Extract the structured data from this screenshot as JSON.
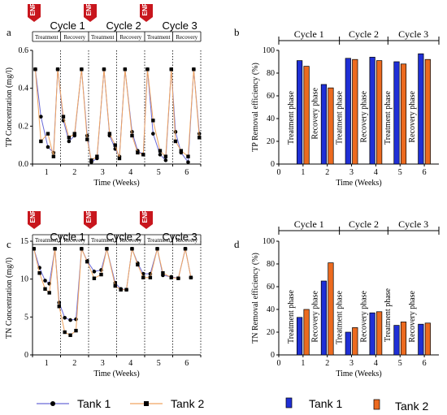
{
  "labels": {
    "panel_a": "a",
    "panel_b": "b",
    "panel_c": "c",
    "panel_d": "d",
    "enr": "ENR",
    "cycles": [
      "Cycle 1",
      "Cycle 2",
      "Cycle 3"
    ],
    "treatment": "Treatment",
    "recovery": "Recovery",
    "treatment_phase": "Treatment phase",
    "recovery_phase": "Recovery phase"
  },
  "legend": {
    "line": [
      {
        "name": "Tank 1",
        "marker": "circle"
      },
      {
        "name": "Tank 2",
        "marker": "square"
      }
    ],
    "bar": [
      {
        "name": "Tank 1",
        "color": "#1f2fd6"
      },
      {
        "name": "Tank 2",
        "color": "#ec6a1f"
      }
    ]
  },
  "colors": {
    "tank1_line": "#6a6ad8",
    "tank2_line": "#f0a560",
    "tank1_bar": "#1f2fd6",
    "tank2_bar": "#ec6a1f",
    "enr": "#c8161d"
  },
  "chart_data": [
    {
      "type": "line",
      "panel": "a",
      "xlabel": "Time (Weeks)",
      "ylabel": "TP Concentration (mg/l)",
      "ylim": [
        0,
        0.6
      ],
      "yticks": [
        "0.0",
        "0.2",
        "0.4",
        "0.6"
      ],
      "xticks": [
        "1",
        "2",
        "3",
        "4",
        "5",
        "6"
      ],
      "series": [
        {
          "name": "Tank 1",
          "x": [
            0.1,
            0.3,
            0.55,
            0.75,
            0.9,
            1.1,
            1.3,
            1.5,
            1.75,
            1.95,
            2.1,
            2.3,
            2.55,
            2.75,
            2.95,
            3.1,
            3.3,
            3.55,
            3.75,
            3.95,
            4.1,
            4.3,
            4.55,
            4.75,
            4.95,
            5.1,
            5.3,
            5.55,
            5.75,
            5.95
          ],
          "values": [
            0.5,
            0.25,
            0.09,
            0.06,
            0.5,
            0.23,
            0.12,
            0.15,
            0.5,
            0.15,
            0.01,
            0.03,
            0.5,
            0.15,
            0.08,
            0.04,
            0.5,
            0.17,
            0.07,
            0.05,
            0.5,
            0.16,
            0.05,
            0.02,
            0.5,
            0.17,
            0.06,
            0.01,
            0.5,
            0.16
          ]
        },
        {
          "name": "Tank 2",
          "x": [
            0.1,
            0.3,
            0.55,
            0.75,
            0.9,
            1.1,
            1.3,
            1.5,
            1.75,
            1.95,
            2.1,
            2.3,
            2.55,
            2.75,
            2.95,
            3.1,
            3.3,
            3.55,
            3.75,
            3.95,
            4.1,
            4.3,
            4.55,
            4.75,
            4.95,
            5.1,
            5.3,
            5.55,
            5.75,
            5.95
          ],
          "values": [
            0.5,
            0.12,
            0.16,
            0.04,
            0.5,
            0.25,
            0.14,
            0.16,
            0.5,
            0.13,
            0.02,
            0.04,
            0.5,
            0.16,
            0.1,
            0.03,
            0.5,
            0.15,
            0.06,
            0.05,
            0.5,
            0.23,
            0.07,
            0.04,
            0.5,
            0.12,
            0.07,
            0.04,
            0.5,
            0.14
          ]
        }
      ]
    },
    {
      "type": "bar",
      "panel": "b",
      "xlabel": "Time (Weeks)",
      "ylabel": "TP Removal efficiency (%)",
      "ylim": [
        0,
        100
      ],
      "yticks": [
        "0",
        "20",
        "40",
        "60",
        "80",
        "100"
      ],
      "xticks": [
        "0",
        "1",
        "2",
        "3",
        "4",
        "5",
        "6"
      ],
      "categories": [
        "1",
        "2",
        "3",
        "4",
        "5",
        "6"
      ],
      "series": [
        {
          "name": "Tank 1",
          "values": [
            91,
            70,
            93,
            94,
            90,
            97
          ]
        },
        {
          "name": "Tank 2",
          "values": [
            86,
            67,
            92,
            91,
            88,
            92
          ]
        }
      ]
    },
    {
      "type": "line",
      "panel": "c",
      "xlabel": "Time (Weeks)",
      "ylabel": "TN Concentration (mg/l)",
      "ylim": [
        0,
        15
      ],
      "yticks": [
        "0",
        "5",
        "10",
        "15"
      ],
      "xticks": [
        "1",
        "2",
        "3",
        "4",
        "5",
        "6"
      ],
      "series": [
        {
          "name": "Tank 1",
          "x": [
            0.05,
            0.25,
            0.45,
            0.6,
            0.8,
            0.95,
            1.15,
            1.35,
            1.55,
            1.75,
            1.95,
            2.2,
            2.45,
            2.65,
            2.95,
            3.15,
            3.35,
            3.55,
            3.75,
            3.95,
            4.2,
            4.45,
            4.65,
            4.95,
            5.2,
            5.45,
            5.65
          ],
          "values": [
            14,
            11.5,
            9.8,
            9.4,
            14,
            6.9,
            4.9,
            4.6,
            4.7,
            14,
            12.4,
            11.0,
            11.2,
            14,
            9.5,
            8.7,
            8.6,
            14,
            12.1,
            10.7,
            10.7,
            14,
            10.5,
            10.3,
            10.1,
            14,
            10.2
          ]
        },
        {
          "name": "Tank 2",
          "x": [
            0.05,
            0.25,
            0.45,
            0.6,
            0.8,
            0.95,
            1.15,
            1.35,
            1.55,
            1.75,
            1.95,
            2.2,
            2.45,
            2.65,
            2.95,
            3.15,
            3.35,
            3.55,
            3.75,
            3.95,
            4.2,
            4.45,
            4.65,
            4.95,
            5.2,
            5.45,
            5.65
          ],
          "values": [
            14,
            10.8,
            8.7,
            8.2,
            14,
            6.4,
            3.0,
            2.6,
            3.2,
            14,
            12.3,
            10.1,
            10.6,
            14,
            9.1,
            8.6,
            8.6,
            14,
            11.9,
            10.2,
            10.2,
            14,
            10.8,
            10.2,
            10.1,
            14,
            10.2
          ]
        }
      ]
    },
    {
      "type": "bar",
      "panel": "d",
      "xlabel": "Time (Weeks)",
      "ylabel": "TN Removal efficiency (%)",
      "ylim": [
        0,
        100
      ],
      "yticks": [
        "0",
        "20",
        "40",
        "60",
        "80",
        "100"
      ],
      "xticks": [
        "0",
        "1",
        "2",
        "3",
        "4",
        "5",
        "6"
      ],
      "categories": [
        "1",
        "2",
        "3",
        "4",
        "5",
        "6"
      ],
      "series": [
        {
          "name": "Tank 1",
          "values": [
            33,
            65,
            20,
            37,
            26,
            27
          ]
        },
        {
          "name": "Tank 2",
          "values": [
            40,
            81,
            24,
            38,
            29,
            28
          ]
        }
      ]
    }
  ]
}
